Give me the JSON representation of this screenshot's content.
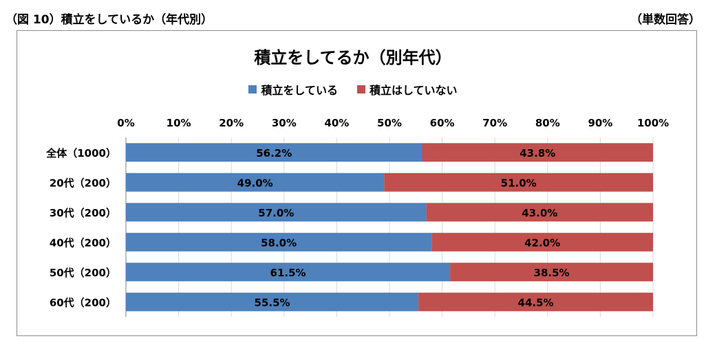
{
  "caption": {
    "left": "（図 10）積立をしているか（年代別）",
    "right": "（単数回答）"
  },
  "chart_data": {
    "type": "bar",
    "orientation": "horizontal",
    "stacked": true,
    "title": "積立をしてるか（別年代）",
    "categories": [
      "全体（1000）",
      "20代（200）",
      "30代（200）",
      "40代（200）",
      "50代（200）",
      "60代（200）"
    ],
    "series": [
      {
        "name": "積立をしている",
        "color": "#4f81bd",
        "values": [
          56.2,
          49.0,
          57.0,
          58.0,
          61.5,
          55.5
        ]
      },
      {
        "name": "積立はしていない",
        "color": "#c0504d",
        "values": [
          43.8,
          51.0,
          43.0,
          42.0,
          38.5,
          44.5
        ]
      }
    ],
    "xlim": [
      0,
      100
    ],
    "xticks": [
      "0%",
      "10%",
      "20%",
      "30%",
      "40%",
      "50%",
      "60%",
      "70%",
      "80%",
      "90%",
      "100%"
    ],
    "tick_axis_position": "top",
    "grid": true,
    "legend_position": "top"
  }
}
